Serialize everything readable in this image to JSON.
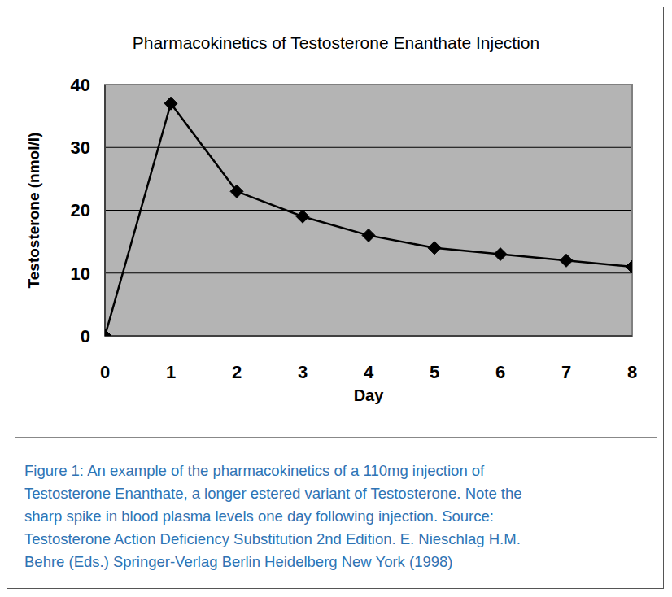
{
  "chart_data": {
    "type": "line",
    "title": "Pharmacokinetics of Testosterone Enanthate Injection",
    "x_label": "Day",
    "y_label": "Testosterone (nmol/l)",
    "x": [
      0,
      1,
      2,
      3,
      4,
      5,
      6,
      7,
      8
    ],
    "series": [
      {
        "name": "Testosterone",
        "color": "#000000",
        "marker": "diamond",
        "values": [
          0,
          37,
          23,
          19,
          16,
          14,
          13,
          12,
          11
        ]
      }
    ],
    "xlim": [
      0,
      8
    ],
    "xticks": [
      0,
      1,
      2,
      3,
      4,
      5,
      6,
      7,
      8
    ],
    "ylim": [
      0,
      40
    ],
    "yticks": [
      0,
      10,
      20,
      30,
      40
    ],
    "grid": true
  },
  "caption": [
    "Figure 1: An example of the pharmacokinetics of a 110mg injection of",
    "Testosterone Enanthate,  a longer estered variant of Testosterone.  Note the",
    "sharp spike in blood  plasma levels one day following injection.  Source:",
    "Testosterone Action Deficiency Substitution 2nd Edition.  E. Nieschlag H.M.",
    "Behre (Eds.) Springer-Verlag Berlin Heidelberg New York (1998)"
  ]
}
